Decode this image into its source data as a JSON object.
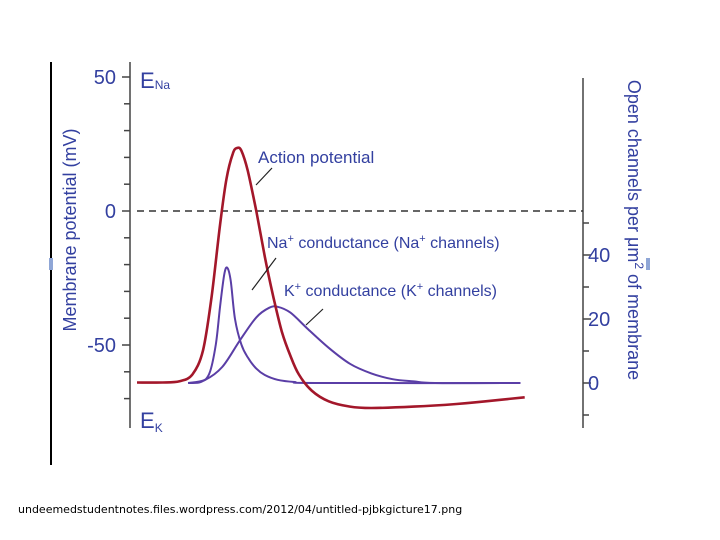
{
  "caption": "undeemedstudentnotes.files.wordpress.com/2012/04/untitled-pjbkgicture17.png",
  "chart_data": {
    "type": "line",
    "left_axis": {
      "label": "Membrane potential (mV)",
      "ticks": [
        50,
        0,
        -50
      ],
      "range": [
        -75,
        58
      ],
      "annotations": {
        "top_base": "E",
        "top_sub": "Na",
        "bottom_base": "E",
        "bottom_sub": "K"
      }
    },
    "right_axis": {
      "label_prefix": "Open channels per ",
      "label_mu": "μ",
      "label_unit": "m",
      "label_exp": "2",
      "label_suffix": " of membrane",
      "ticks": [
        40,
        20,
        0
      ],
      "range": [
        0,
        40
      ]
    },
    "zero_line": true,
    "time_range": [
      0,
      10
    ],
    "colors": {
      "action_potential": "#a3172a",
      "conductance": "#5a3ea6",
      "axis_text": "#3340a0",
      "axis_line": "#444444",
      "pointer": "#222222"
    },
    "series": [
      {
        "name": "Action potential",
        "axis": "left",
        "points": [
          [
            0.0,
            -64
          ],
          [
            0.6,
            -64
          ],
          [
            1.0,
            -63.5
          ],
          [
            1.3,
            -61
          ],
          [
            1.55,
            -52
          ],
          [
            1.75,
            -32
          ],
          [
            1.95,
            -5
          ],
          [
            2.1,
            12
          ],
          [
            2.25,
            21.5
          ],
          [
            2.35,
            23.5
          ],
          [
            2.45,
            22.5
          ],
          [
            2.6,
            15
          ],
          [
            2.8,
            0
          ],
          [
            3.0,
            -17
          ],
          [
            3.2,
            -32
          ],
          [
            3.4,
            -45
          ],
          [
            3.6,
            -54
          ],
          [
            3.8,
            -61
          ],
          [
            4.1,
            -67
          ],
          [
            4.5,
            -71
          ],
          [
            5.0,
            -73
          ],
          [
            5.5,
            -73.5
          ],
          [
            6.5,
            -73
          ],
          [
            7.5,
            -72
          ],
          [
            8.5,
            -70.5
          ],
          [
            9.1,
            -69.5
          ]
        ]
      },
      {
        "name_base": "Na",
        "name_sup": "+",
        "name_mid": " conductance (Na",
        "name_sup2": "+",
        "name_end": " channels)",
        "axis": "right",
        "points": [
          [
            1.2,
            0
          ],
          [
            1.5,
            0.3
          ],
          [
            1.7,
            3
          ],
          [
            1.85,
            12
          ],
          [
            1.95,
            24
          ],
          [
            2.05,
            34
          ],
          [
            2.12,
            36
          ],
          [
            2.2,
            32
          ],
          [
            2.3,
            20
          ],
          [
            2.45,
            12
          ],
          [
            2.6,
            8
          ],
          [
            2.8,
            4.5
          ],
          [
            3.0,
            2.5
          ],
          [
            3.3,
            1
          ],
          [
            3.7,
            0.3
          ],
          [
            4.2,
            0
          ],
          [
            9.0,
            0
          ]
        ]
      },
      {
        "name_base": "K",
        "name_sup": "+",
        "name_mid": " conductance (K",
        "name_sup2": "+",
        "name_end": " channels)",
        "axis": "right",
        "points": [
          [
            1.2,
            0
          ],
          [
            1.6,
            1
          ],
          [
            2.0,
            5
          ],
          [
            2.4,
            13
          ],
          [
            2.8,
            20.5
          ],
          [
            3.1,
            23.5
          ],
          [
            3.3,
            23.8
          ],
          [
            3.6,
            22
          ],
          [
            4.0,
            17
          ],
          [
            4.5,
            11
          ],
          [
            5.0,
            6
          ],
          [
            5.5,
            3
          ],
          [
            6.0,
            1.2
          ],
          [
            6.5,
            0.5
          ],
          [
            7.0,
            0
          ],
          [
            9.0,
            0
          ]
        ]
      }
    ]
  }
}
